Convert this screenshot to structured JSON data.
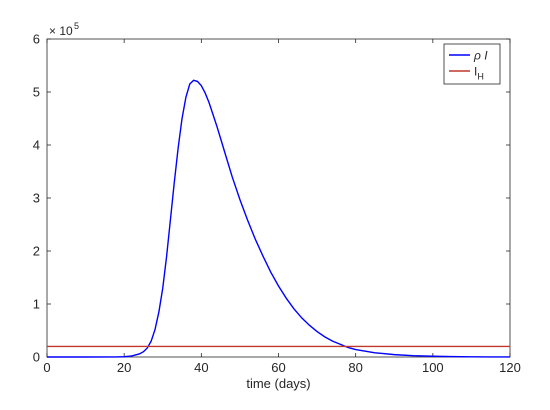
{
  "chart_data": {
    "type": "line",
    "xlabel": "time (days)",
    "ylabel": "",
    "xlim": [
      0,
      120
    ],
    "ylim": [
      0,
      6
    ],
    "y_multiplier_label": "× 10",
    "y_multiplier_exponent": "5",
    "x_ticks": [
      0,
      20,
      40,
      60,
      80,
      100,
      120
    ],
    "y_ticks": [
      0,
      1,
      2,
      3,
      4,
      5,
      6
    ],
    "grid": false,
    "legend_position": "top-right",
    "series": [
      {
        "name": "ρ I",
        "color": "#0000ff",
        "x": [
          0,
          10,
          18,
          20,
          22,
          24,
          25,
          26,
          27,
          28,
          29,
          30,
          31,
          32,
          33,
          34,
          35,
          36,
          37,
          38,
          39,
          40,
          41,
          42,
          43,
          44,
          45,
          46,
          48,
          50,
          52,
          54,
          56,
          58,
          60,
          62,
          64,
          66,
          68,
          70,
          72,
          74,
          76,
          78,
          80,
          85,
          90,
          95,
          100,
          105,
          110,
          115,
          120
        ],
        "y": [
          0,
          0,
          0.002,
          0.005,
          0.02,
          0.06,
          0.1,
          0.17,
          0.3,
          0.52,
          0.85,
          1.3,
          1.9,
          2.6,
          3.3,
          3.95,
          4.5,
          4.9,
          5.15,
          5.22,
          5.2,
          5.12,
          4.98,
          4.8,
          4.58,
          4.36,
          4.12,
          3.88,
          3.4,
          2.97,
          2.58,
          2.22,
          1.9,
          1.6,
          1.34,
          1.11,
          0.91,
          0.74,
          0.6,
          0.48,
          0.38,
          0.3,
          0.24,
          0.18,
          0.14,
          0.08,
          0.045,
          0.025,
          0.014,
          0.008,
          0.004,
          0.002,
          0.001
        ]
      },
      {
        "name": "I",
        "name_subscript": "H",
        "color": "#c0392b",
        "x": [
          0,
          120
        ],
        "y": [
          0.2,
          0.2
        ]
      }
    ]
  }
}
